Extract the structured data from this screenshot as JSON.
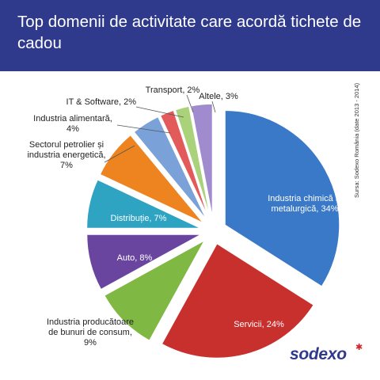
{
  "header": {
    "title": "Top domenii de activitate care acordă tichete de cadou"
  },
  "source_note": "Sursa: Sodexo România (date 2013 - 2014)",
  "logo": {
    "text": "sodexo",
    "accent_color": "#d0232a",
    "brand_color": "#2f3a8c"
  },
  "chart_data": {
    "type": "pie",
    "title": "Top domenii de activitate care acordă tichete de cadou",
    "exploded": true,
    "slices": [
      {
        "label": "Industria chimică și metalurgică, 34%",
        "value": 34,
        "color": "#3a78c8"
      },
      {
        "label": "Servicii, 24%",
        "value": 24,
        "color": "#c8302e"
      },
      {
        "label": "Industria producătoare de bunuri de consum, 9%",
        "value": 9,
        "color": "#7fb842"
      },
      {
        "label": "Auto, 8%",
        "value": 8,
        "color": "#6a45a0"
      },
      {
        "label": "Distribuție, 7%",
        "value": 7,
        "color": "#2ea3c2"
      },
      {
        "label": "Sectorul petrolier și industria energetică, 7%",
        "value": 7,
        "color": "#ee8420"
      },
      {
        "label": "Industria alimentară, 4%",
        "value": 4,
        "color": "#7aa2d8"
      },
      {
        "label": "IT & Software, 2%",
        "value": 2,
        "color": "#e25a5a"
      },
      {
        "label": "Transport, 2%",
        "value": 2,
        "color": "#a9d27a"
      },
      {
        "label": "Altele, 3%",
        "value": 3,
        "color": "#a18bcf"
      }
    ]
  }
}
